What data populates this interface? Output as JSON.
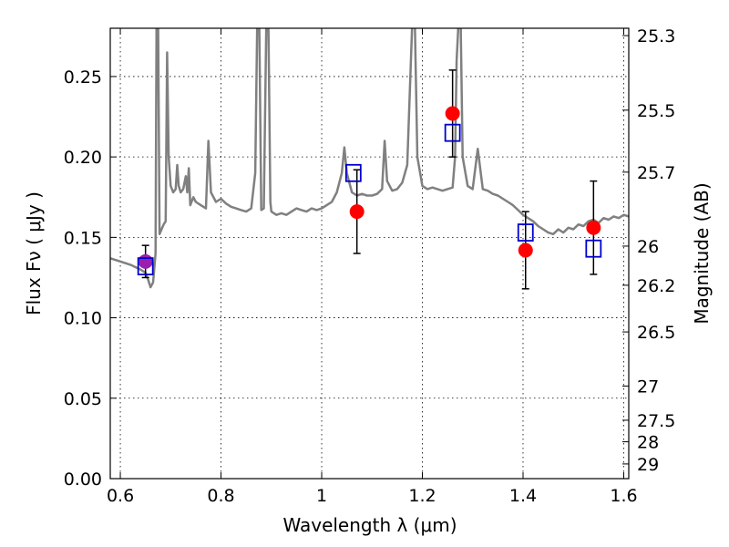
{
  "chart_data": {
    "type": "scatter",
    "xlabel": "Wavelength  λ (μm)",
    "ylabel": "Flux  Fν  ( μJy )",
    "ylabel_right": "Magnitude (AB)",
    "xlim": [
      0.58,
      1.61
    ],
    "ylim": [
      0.0,
      0.28
    ],
    "grid": true,
    "x_ticks": [
      {
        "value": 0.6,
        "label": "0.6"
      },
      {
        "value": 0.8,
        "label": "0.8"
      },
      {
        "value": 1.0,
        "label": "1"
      },
      {
        "value": 1.2,
        "label": "1.2"
      },
      {
        "value": 1.4,
        "label": "1.4"
      },
      {
        "value": 1.6,
        "label": "1.6"
      }
    ],
    "y_ticks": [
      {
        "value": 0.0,
        "label": "0.00"
      },
      {
        "value": 0.05,
        "label": "0.05"
      },
      {
        "value": 0.1,
        "label": "0.10"
      },
      {
        "value": 0.15,
        "label": "0.15"
      },
      {
        "value": 0.2,
        "label": "0.20"
      },
      {
        "value": 0.25,
        "label": "0.25"
      }
    ],
    "right_ticks": [
      {
        "value": 25.3,
        "label": "25.3"
      },
      {
        "value": 25.5,
        "label": "25.5"
      },
      {
        "value": 25.7,
        "label": "25.7"
      },
      {
        "value": 26.0,
        "label": "26"
      },
      {
        "value": 26.2,
        "label": "26.2"
      },
      {
        "value": 26.5,
        "label": "26.5"
      },
      {
        "value": 27.0,
        "label": "27"
      },
      {
        "value": 27.5,
        "label": "27.5"
      },
      {
        "value": 28.0,
        "label": "28"
      },
      {
        "value": 29.0,
        "label": "29"
      }
    ],
    "colors": {
      "observed": "#ff0000",
      "model": "#0000cc",
      "sed": "#808080",
      "errorbar": "#000000",
      "overlap": "#9a1fb0"
    },
    "observed": [
      {
        "x": 0.65,
        "y": 0.135,
        "err": 0.01
      },
      {
        "x": 1.07,
        "y": 0.166,
        "err": 0.026
      },
      {
        "x": 1.26,
        "y": 0.227,
        "err": 0.027
      },
      {
        "x": 1.405,
        "y": 0.142,
        "err": 0.024
      },
      {
        "x": 1.54,
        "y": 0.156,
        "err": 0.029
      }
    ],
    "model": [
      {
        "x": 0.65,
        "y": 0.132
      },
      {
        "x": 1.063,
        "y": 0.19
      },
      {
        "x": 1.26,
        "y": 0.215
      },
      {
        "x": 1.405,
        "y": 0.153
      },
      {
        "x": 1.54,
        "y": 0.143
      }
    ],
    "sed": [
      [
        0.58,
        0.137
      ],
      [
        0.6,
        0.135
      ],
      [
        0.62,
        0.133
      ],
      [
        0.64,
        0.13
      ],
      [
        0.65,
        0.128
      ],
      [
        0.655,
        0.124
      ],
      [
        0.66,
        0.119
      ],
      [
        0.665,
        0.122
      ],
      [
        0.67,
        0.14
      ],
      [
        0.672,
        0.285
      ],
      [
        0.675,
        0.285
      ],
      [
        0.678,
        0.152
      ],
      [
        0.682,
        0.155
      ],
      [
        0.686,
        0.158
      ],
      [
        0.69,
        0.16
      ],
      [
        0.693,
        0.265
      ],
      [
        0.696,
        0.2
      ],
      [
        0.7,
        0.182
      ],
      [
        0.705,
        0.178
      ],
      [
        0.71,
        0.18
      ],
      [
        0.713,
        0.195
      ],
      [
        0.716,
        0.182
      ],
      [
        0.72,
        0.178
      ],
      [
        0.725,
        0.18
      ],
      [
        0.73,
        0.188
      ],
      [
        0.733,
        0.178
      ],
      [
        0.736,
        0.193
      ],
      [
        0.739,
        0.17
      ],
      [
        0.745,
        0.175
      ],
      [
        0.75,
        0.172
      ],
      [
        0.76,
        0.17
      ],
      [
        0.77,
        0.168
      ],
      [
        0.775,
        0.21
      ],
      [
        0.78,
        0.178
      ],
      [
        0.79,
        0.172
      ],
      [
        0.8,
        0.174
      ],
      [
        0.81,
        0.171
      ],
      [
        0.82,
        0.169
      ],
      [
        0.83,
        0.168
      ],
      [
        0.84,
        0.167
      ],
      [
        0.85,
        0.166
      ],
      [
        0.86,
        0.168
      ],
      [
        0.868,
        0.19
      ],
      [
        0.872,
        0.285
      ],
      [
        0.876,
        0.285
      ],
      [
        0.88,
        0.167
      ],
      [
        0.885,
        0.168
      ],
      [
        0.89,
        0.285
      ],
      [
        0.894,
        0.285
      ],
      [
        0.898,
        0.172
      ],
      [
        0.9,
        0.166
      ],
      [
        0.91,
        0.164
      ],
      [
        0.92,
        0.165
      ],
      [
        0.93,
        0.164
      ],
      [
        0.94,
        0.166
      ],
      [
        0.95,
        0.168
      ],
      [
        0.96,
        0.167
      ],
      [
        0.97,
        0.166
      ],
      [
        0.98,
        0.168
      ],
      [
        0.99,
        0.167
      ],
      [
        1.0,
        0.168
      ],
      [
        1.01,
        0.17
      ],
      [
        1.02,
        0.172
      ],
      [
        1.03,
        0.178
      ],
      [
        1.04,
        0.19
      ],
      [
        1.045,
        0.206
      ],
      [
        1.05,
        0.19
      ],
      [
        1.06,
        0.178
      ],
      [
        1.07,
        0.176
      ],
      [
        1.08,
        0.177
      ],
      [
        1.09,
        0.176
      ],
      [
        1.1,
        0.176
      ],
      [
        1.11,
        0.177
      ],
      [
        1.12,
        0.18
      ],
      [
        1.125,
        0.21
      ],
      [
        1.13,
        0.185
      ],
      [
        1.14,
        0.179
      ],
      [
        1.15,
        0.18
      ],
      [
        1.16,
        0.184
      ],
      [
        1.17,
        0.195
      ],
      [
        1.18,
        0.285
      ],
      [
        1.185,
        0.285
      ],
      [
        1.19,
        0.2
      ],
      [
        1.2,
        0.182
      ],
      [
        1.21,
        0.18
      ],
      [
        1.22,
        0.181
      ],
      [
        1.23,
        0.18
      ],
      [
        1.24,
        0.179
      ],
      [
        1.25,
        0.18
      ],
      [
        1.26,
        0.181
      ],
      [
        1.265,
        0.2
      ],
      [
        1.268,
        0.26
      ],
      [
        1.272,
        0.285
      ],
      [
        1.276,
        0.285
      ],
      [
        1.28,
        0.2
      ],
      [
        1.29,
        0.182
      ],
      [
        1.3,
        0.18
      ],
      [
        1.31,
        0.205
      ],
      [
        1.32,
        0.18
      ],
      [
        1.33,
        0.179
      ],
      [
        1.34,
        0.177
      ],
      [
        1.35,
        0.176
      ],
      [
        1.36,
        0.174
      ],
      [
        1.37,
        0.172
      ],
      [
        1.38,
        0.17
      ],
      [
        1.39,
        0.167
      ],
      [
        1.4,
        0.164
      ],
      [
        1.41,
        0.162
      ],
      [
        1.42,
        0.16
      ],
      [
        1.43,
        0.157
      ],
      [
        1.44,
        0.155
      ],
      [
        1.45,
        0.153
      ],
      [
        1.46,
        0.152
      ],
      [
        1.47,
        0.155
      ],
      [
        1.48,
        0.153
      ],
      [
        1.49,
        0.156
      ],
      [
        1.5,
        0.155
      ],
      [
        1.51,
        0.158
      ],
      [
        1.52,
        0.157
      ],
      [
        1.53,
        0.16
      ],
      [
        1.54,
        0.161
      ],
      [
        1.55,
        0.159
      ],
      [
        1.56,
        0.162
      ],
      [
        1.57,
        0.161
      ],
      [
        1.58,
        0.163
      ],
      [
        1.59,
        0.162
      ],
      [
        1.6,
        0.164
      ],
      [
        1.61,
        0.163
      ]
    ]
  }
}
